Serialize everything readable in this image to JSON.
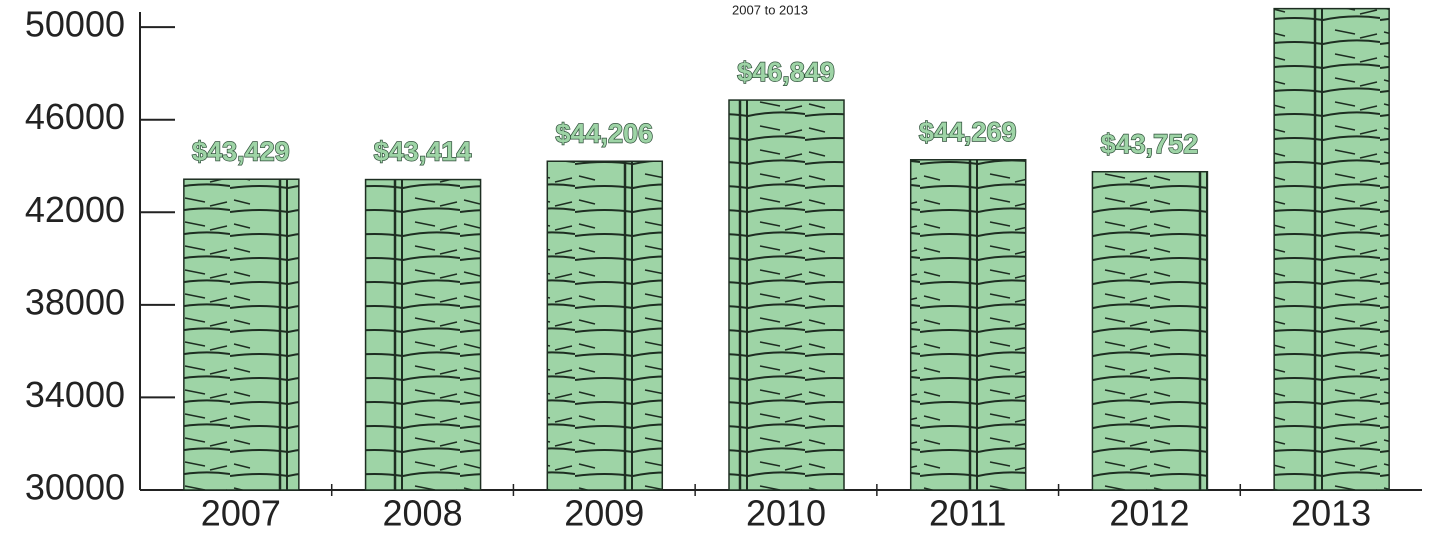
{
  "chart_data": {
    "type": "bar",
    "subtitle": "2007 to 2013",
    "categories": [
      "2007",
      "2008",
      "2009",
      "2010",
      "2011",
      "2012",
      "2013"
    ],
    "values": [
      43429,
      43414,
      44206,
      46849,
      44269,
      43752,
      50800
    ],
    "value_labels": [
      "$43,429",
      "$43,414",
      "$44,206",
      "$46,849",
      "$44,269",
      "$43,752",
      null
    ],
    "color": "#9ed4a6",
    "ylim": [
      30000,
      51000
    ],
    "yticks": [
      30000,
      34000,
      38000,
      42000,
      46000,
      50000
    ]
  }
}
